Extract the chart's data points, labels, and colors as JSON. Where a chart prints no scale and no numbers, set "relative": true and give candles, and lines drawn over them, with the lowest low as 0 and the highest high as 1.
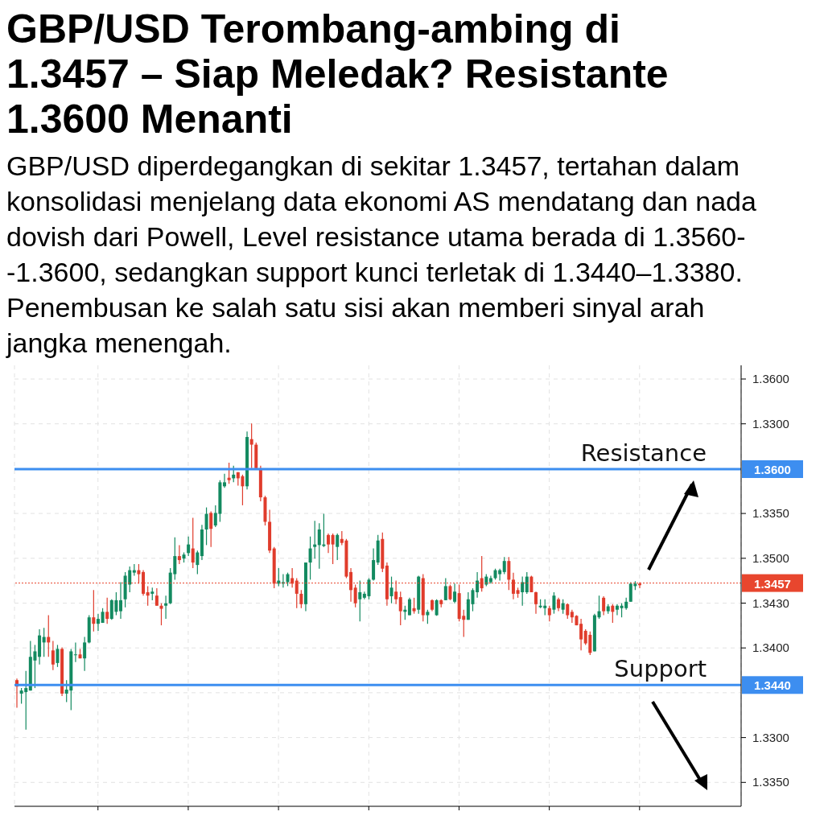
{
  "chart_data": {
    "type": "candlestick",
    "relative": true,
    "title": "GBP/USD Terombang-ambing di 1.3457 – Siap Meledak? Resistante 1.3600 Menanti",
    "subtitle": "GBP/USD diperdegangkan di sekitar 1.3457, tertahan dalam konsolidasi menjelang data ekonomi AS mendatang dan nada dovish dari Powell, Level resistance utama berada di 1.3560--1.3600, sedangkan support kunci terletak di 1.3440–1.3380. Penembusan ke salah satu sisi akan memberi sinyal arah jangka menengah.",
    "categories": [
      null,
      null,
      null,
      null,
      null,
      null,
      null,
      null,
      null,
      null,
      null,
      null,
      null,
      null,
      null,
      null,
      null,
      null,
      null,
      null,
      null,
      null,
      null,
      null,
      null,
      null,
      null,
      null,
      null,
      null,
      null,
      null,
      null,
      null,
      null,
      null,
      null,
      null,
      null,
      null,
      null,
      null,
      null,
      null,
      null,
      null,
      null,
      null,
      null,
      null,
      null,
      null,
      null,
      null,
      null,
      null,
      null,
      null,
      null,
      null,
      null,
      null,
      null,
      null,
      null,
      null,
      null,
      null,
      null,
      null,
      null,
      null,
      null,
      null,
      null,
      null,
      null,
      null,
      null,
      null,
      null,
      null,
      null,
      null,
      null,
      null,
      null,
      null,
      null,
      null,
      null,
      null,
      null,
      null,
      null,
      null,
      null,
      null,
      null,
      null,
      null,
      null,
      null,
      null,
      null,
      null,
      null,
      null,
      null,
      null,
      null,
      null,
      null,
      null,
      null,
      null,
      null,
      null,
      null,
      null,
      null,
      null,
      null,
      null,
      null,
      null,
      null,
      null,
      null,
      null,
      null,
      null,
      null,
      null,
      null,
      null,
      null,
      null,
      null
    ],
    "ohlc": [
      [
        0.162,
        0.167,
        0.072,
        0.141
      ],
      [
        0.118,
        0.136,
        0.085,
        0.128
      ],
      [
        0.123,
        0.192,
        0,
        0.136
      ],
      [
        0.128,
        0.29,
        0.128,
        0.238
      ],
      [
        0.226,
        0.277,
        0.136,
        0.256
      ],
      [
        0.238,
        0.328,
        0.213,
        0.308
      ],
      [
        0.285,
        0.333,
        0.238,
        0.303
      ],
      [
        0.303,
        0.374,
        0.238,
        0.285
      ],
      [
        0.259,
        0.29,
        0.195,
        0.213
      ],
      [
        0.218,
        0.277,
        0.205,
        0.264
      ],
      [
        0.264,
        0.269,
        0.11,
        0.118
      ],
      [
        0.118,
        0.162,
        0.09,
        0.131
      ],
      [
        0.128,
        0.264,
        0.064,
        0.256
      ],
      [
        0.244,
        0.285,
        0.221,
        0.246
      ],
      [
        0.246,
        0.264,
        0.233,
        0.233
      ],
      [
        0.233,
        0.303,
        0.192,
        0.285
      ],
      [
        0.285,
        0.374,
        0.282,
        0.367
      ],
      [
        0.367,
        0.456,
        0.321,
        0.346
      ],
      [
        0.346,
        0.379,
        0.323,
        0.362
      ],
      [
        0.349,
        0.397,
        0.349,
        0.385
      ],
      [
        0.385,
        0.431,
        0.346,
        0.362
      ],
      [
        0.362,
        0.426,
        0.359,
        0.423
      ],
      [
        0.385,
        0.449,
        0.374,
        0.423
      ],
      [
        0.387,
        0.482,
        0.362,
        0.423
      ],
      [
        0.426,
        0.515,
        0.4,
        0.503
      ],
      [
        0.474,
        0.533,
        0.449,
        0.521
      ],
      [
        0.513,
        0.541,
        0.503,
        0.521
      ],
      [
        0.521,
        0.541,
        0.477,
        0.508
      ],
      [
        0.515,
        0.521,
        0.438,
        0.444
      ],
      [
        0.449,
        0.469,
        0.405,
        0.438
      ],
      [
        0.444,
        0.464,
        0.423,
        0.451
      ],
      [
        0.438,
        0.462,
        0.405,
        0.405
      ],
      [
        0.405,
        0.413,
        0.341,
        0.395
      ],
      [
        0.405,
        0.438,
        0.362,
        0.413
      ],
      [
        0.413,
        0.528,
        0.41,
        0.513
      ],
      [
        0.508,
        0.628,
        0.49,
        0.567
      ],
      [
        0.567,
        0.603,
        0.541,
        0.554
      ],
      [
        0.559,
        0.579,
        0.546,
        0.572
      ],
      [
        0.577,
        0.631,
        0.567,
        0.605
      ],
      [
        0.592,
        0.692,
        0.528,
        0.546
      ],
      [
        0.538,
        0.585,
        0.508,
        0.579
      ],
      [
        0.567,
        0.669,
        0.554,
        0.654
      ],
      [
        0.654,
        0.726,
        0.603,
        0.705
      ],
      [
        0.708,
        0.713,
        0.597,
        0.656
      ],
      [
        0.667,
        0.733,
        0.662,
        0.708
      ],
      [
        0.705,
        0.815,
        0.679,
        0.808
      ],
      [
        0.795,
        0.836,
        0.79,
        0.808
      ],
      [
        0.823,
        0.872,
        0.803,
        0.815
      ],
      [
        0.821,
        0.862,
        0.808,
        0.833
      ],
      [
        0.841,
        0.841,
        0.797,
        0.821
      ],
      [
        0.828,
        0.833,
        0.733,
        0.795
      ],
      [
        0.795,
        0.974,
        0.785,
        0.956
      ],
      [
        0.949,
        1,
        0.854,
        0.931
      ],
      [
        0.931,
        0.938,
        0.849,
        0.854
      ],
      [
        0.854,
        0.862,
        0.746,
        0.759
      ],
      [
        0.759,
        0.764,
        0.667,
        0.679
      ],
      [
        0.679,
        0.718,
        0.577,
        0.585
      ],
      [
        0.592,
        0.597,
        0.462,
        0.477
      ],
      [
        0.477,
        0.528,
        0.469,
        0.487
      ],
      [
        0.477,
        0.508,
        0.464,
        0.482
      ],
      [
        0.482,
        0.513,
        0.469,
        0.508
      ],
      [
        0.495,
        0.528,
        0.464,
        0.477
      ],
      [
        0.487,
        0.495,
        0.397,
        0.444
      ],
      [
        0.444,
        0.456,
        0.397,
        0.41
      ],
      [
        0.41,
        0.546,
        0.387,
        0.546
      ],
      [
        0.546,
        0.631,
        0.49,
        0.592
      ],
      [
        0.597,
        0.682,
        0.559,
        0.605
      ],
      [
        0.603,
        0.674,
        0.526,
        0.654
      ],
      [
        0.6,
        0.705,
        0.597,
        0.605
      ],
      [
        0.636,
        0.641,
        0.577,
        0.605
      ],
      [
        0.636,
        0.641,
        0.541,
        0.605
      ],
      [
        0.597,
        0.641,
        0.554,
        0.636
      ],
      [
        0.623,
        0.649,
        0.603,
        0.61
      ],
      [
        0.618,
        0.623,
        0.495,
        0.5
      ],
      [
        0.515,
        0.528,
        0.418,
        0.456
      ],
      [
        0.464,
        0.474,
        0.4,
        0.413
      ],
      [
        0.426,
        0.487,
        0.354,
        0.449
      ],
      [
        0.431,
        0.451,
        0.426,
        0.444
      ],
      [
        0.436,
        0.495,
        0.426,
        0.49
      ],
      [
        0.49,
        0.592,
        0.487,
        0.554
      ],
      [
        0.546,
        0.636,
        0.538,
        0.618
      ],
      [
        0.623,
        0.644,
        0.515,
        0.526
      ],
      [
        0.536,
        0.546,
        0.405,
        0.426
      ],
      [
        0.436,
        0.5,
        0.413,
        0.464
      ],
      [
        0.451,
        0.487,
        0.41,
        0.426
      ],
      [
        0.433,
        0.451,
        0.341,
        0.387
      ],
      [
        0.385,
        0.405,
        0.359,
        0.392
      ],
      [
        0.374,
        0.431,
        0.374,
        0.426
      ],
      [
        0.397,
        0.431,
        0.379,
        0.387
      ],
      [
        0.392,
        0.503,
        0.379,
        0.5
      ],
      [
        0.495,
        0.508,
        0.354,
        0.374
      ],
      [
        0.374,
        0.392,
        0.346,
        0.385
      ],
      [
        0.423,
        0.426,
        0.387,
        0.392
      ],
      [
        0.374,
        0.426,
        0.372,
        0.423
      ],
      [
        0.423,
        0.426,
        0.4,
        0.41
      ],
      [
        0.423,
        0.495,
        0.423,
        0.469
      ],
      [
        0.469,
        0.474,
        0.423,
        0.426
      ],
      [
        0.418,
        0.477,
        0.413,
        0.451
      ],
      [
        0.446,
        0.474,
        0.354,
        0.362
      ],
      [
        0.372,
        0.392,
        0.303,
        0.359
      ],
      [
        0.359,
        0.449,
        0.359,
        0.426
      ],
      [
        0.41,
        0.462,
        0.387,
        0.456
      ],
      [
        0.449,
        0.515,
        0.431,
        0.487
      ],
      [
        0.495,
        0.567,
        0.451,
        0.462
      ],
      [
        0.474,
        0.508,
        0.469,
        0.5
      ],
      [
        0.482,
        0.503,
        0.477,
        0.495
      ],
      [
        0.495,
        0.526,
        0.49,
        0.521
      ],
      [
        0.508,
        0.526,
        0.487,
        0.521
      ],
      [
        0.515,
        0.564,
        0.508,
        0.551
      ],
      [
        0.551,
        0.564,
        0.456,
        0.49
      ],
      [
        0.49,
        0.513,
        0.426,
        0.444
      ],
      [
        0.456,
        0.464,
        0.431,
        0.444
      ],
      [
        0.449,
        0.5,
        0.405,
        0.482
      ],
      [
        0.449,
        0.515,
        0.444,
        0.5
      ],
      [
        0.5,
        0.503,
        0.449,
        0.449
      ],
      [
        0.449,
        0.451,
        0.379,
        0.41
      ],
      [
        0.4,
        0.426,
        0.397,
        0.405
      ],
      [
        0.397,
        0.426,
        0.374,
        0.405
      ],
      [
        0.397,
        0.405,
        0.354,
        0.374
      ],
      [
        0.392,
        0.449,
        0.379,
        0.438
      ],
      [
        0.426,
        0.431,
        0.387,
        0.397
      ],
      [
        0.392,
        0.426,
        0.379,
        0.413
      ],
      [
        0.41,
        0.413,
        0.362,
        0.374
      ],
      [
        0.385,
        0.392,
        0.349,
        0.367
      ],
      [
        0.372,
        0.374,
        0.341,
        0.341
      ],
      [
        0.346,
        0.362,
        0.259,
        0.295
      ],
      [
        0.323,
        0.328,
        0.277,
        0.282
      ],
      [
        0.31,
        0.321,
        0.244,
        0.251
      ],
      [
        0.256,
        0.379,
        0.256,
        0.374
      ],
      [
        0.367,
        0.438,
        0.362,
        0.387
      ],
      [
        0.431,
        0.436,
        0.374,
        0.387
      ],
      [
        0.387,
        0.41,
        0.379,
        0.403
      ],
      [
        0.405,
        0.41,
        0.349,
        0.385
      ],
      [
        0.392,
        0.41,
        0.374,
        0.405
      ],
      [
        0.397,
        0.413,
        0.367,
        0.405
      ],
      [
        0.397,
        0.431,
        0.392,
        0.418
      ],
      [
        0.418,
        0.482,
        0.418,
        0.477
      ],
      [
        0.469,
        0.485,
        0.456,
        0.477
      ],
      [
        0.477,
        0.482,
        0.462,
        0.472
      ]
    ],
    "colors": [
      "#e03c2c",
      "#138a60",
      "#138a60",
      "#138a60",
      "#138a60",
      "#138a60",
      "#138a60",
      "#e03c2c",
      "#e03c2c",
      "#138a60",
      "#e03c2c",
      "#138a60",
      "#138a60",
      "#138a60",
      "#e03c2c",
      "#138a60",
      "#138a60",
      "#e03c2c",
      "#138a60",
      "#138a60",
      "#e03c2c",
      "#138a60",
      "#138a60",
      "#138a60",
      "#138a60",
      "#138a60",
      "#138a60",
      "#e03c2c",
      "#e03c2c",
      "#e03c2c",
      "#138a60",
      "#e03c2c",
      "#e03c2c",
      "#138a60",
      "#138a60",
      "#138a60",
      "#e03c2c",
      "#138a60",
      "#138a60",
      "#e03c2c",
      "#138a60",
      "#138a60",
      "#138a60",
      "#e03c2c",
      "#138a60",
      "#138a60",
      "#138a60",
      "#e03c2c",
      "#138a60",
      "#e03c2c",
      "#e03c2c",
      "#138a60",
      "#e03c2c",
      "#e03c2c",
      "#e03c2c",
      "#e03c2c",
      "#e03c2c",
      "#e03c2c",
      "#138a60",
      "#138a60",
      "#138a60",
      "#e03c2c",
      "#e03c2c",
      "#e03c2c",
      "#138a60",
      "#138a60",
      "#138a60",
      "#138a60",
      "#138a60",
      "#e03c2c",
      "#e03c2c",
      "#138a60",
      "#e03c2c",
      "#e03c2c",
      "#e03c2c",
      "#e03c2c",
      "#138a60",
      "#138a60",
      "#138a60",
      "#138a60",
      "#138a60",
      "#e03c2c",
      "#e03c2c",
      "#138a60",
      "#e03c2c",
      "#e03c2c",
      "#138a60",
      "#138a60",
      "#e03c2c",
      "#138a60",
      "#e03c2c",
      "#138a60",
      "#e03c2c",
      "#138a60",
      "#e03c2c",
      "#138a60",
      "#e03c2c",
      "#138a60",
      "#e03c2c",
      "#e03c2c",
      "#138a60",
      "#138a60",
      "#138a60",
      "#e03c2c",
      "#138a60",
      "#138a60",
      "#138a60",
      "#138a60",
      "#138a60",
      "#e03c2c",
      "#e03c2c",
      "#e03c2c",
      "#138a60",
      "#138a60",
      "#e03c2c",
      "#e03c2c",
      "#138a60",
      "#138a60",
      "#e03c2c",
      "#138a60",
      "#e03c2c",
      "#138a60",
      "#e03c2c",
      "#e03c2c",
      "#e03c2c",
      "#e03c2c",
      "#e03c2c",
      "#e03c2c",
      "#138a60",
      "#138a60",
      "#e03c2c",
      "#138a60",
      "#e03c2c",
      "#138a60",
      "#138a60",
      "#138a60",
      "#138a60",
      "#138a60",
      "#e03c2c"
    ],
    "ylim": [
      -0.25,
      1.19
    ],
    "grid": true,
    "ref_lines": [
      {
        "axis": "y",
        "value": 0.851,
        "label": "Resistance",
        "color": "#3d8ef0"
      },
      {
        "axis": "y",
        "value": 0.146,
        "label": "Support",
        "color": "#3d8ef0"
      },
      {
        "axis": "y",
        "value": 0.479,
        "color": "#e8462e",
        "line_style": "dotted"
      }
    ],
    "annotations": [
      "1.3600",
      "1.3300",
      "1.3350",
      "1.3500",
      "1.3430",
      "1.3400",
      "1.3300",
      "1.3350",
      "1.3600",
      "1.3440",
      "1.3457"
    ]
  }
}
